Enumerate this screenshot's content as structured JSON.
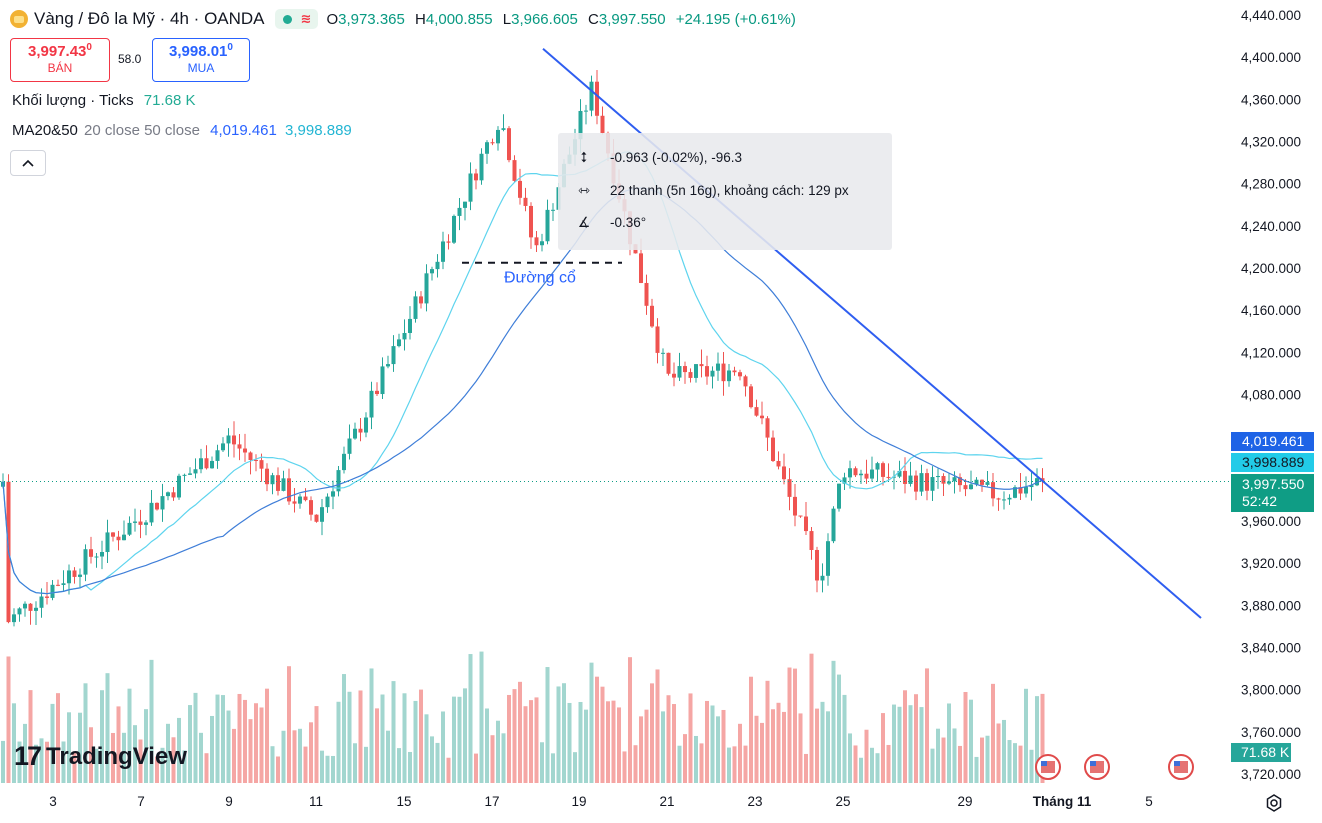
{
  "header": {
    "symbol_title": "Vàng / Đô la Mỹ · 4h · OANDA",
    "o_label": "O",
    "o_value": "3,973.365",
    "h_label": "H",
    "h_value": "4,000.855",
    "l_label": "L",
    "l_value": "3,966.605",
    "c_label": "C",
    "c_value": "3,997.550",
    "change": "+24.195 (+0.61%)"
  },
  "trade": {
    "sell_price": "3,997.43",
    "sell_sup": "0",
    "sell_label": "BÁN",
    "spread": "58.0",
    "buy_price": "3,998.01",
    "buy_sup": "0",
    "buy_label": "MUA"
  },
  "indicators": {
    "volume_label": "Khối lượng · Ticks",
    "volume_value": "71.68 K",
    "ma_label": "MA20&50",
    "ma_params": "20 close 50 close",
    "ma20_value": "4,019.461",
    "ma50_value": "3,998.889"
  },
  "measure": {
    "price_change": "-0.963 (-0.02%), -96.3",
    "bars": "22 thanh (5n 16g), khoảng cách: 129 px",
    "angle": "-0.36°"
  },
  "annotation": {
    "support_label": "Đường cổ"
  },
  "price_tags": {
    "ma20": "4,019.461",
    "ma50": "3,998.889",
    "last": "3,997.550",
    "countdown": "52:42",
    "volume": "71.68 K"
  },
  "brand": {
    "logo_text": "TradingView"
  },
  "colors": {
    "up": "#26a69a",
    "down": "#ef5350",
    "vol_up": "#a2d6cf",
    "vol_down": "#f5a6a4",
    "ma20": "#5ed4ee",
    "ma50": "#3f7ed8",
    "trendline": "#2f5ef0",
    "tag_ma20": "#1e63e6",
    "tag_ma50": "#22cbe8",
    "tag_last": "#0f9d85"
  },
  "chart_data": {
    "type": "candlestick",
    "title": "Vàng / Đô la Mỹ · 4h · OANDA",
    "y_ticks": [
      "4,440.000",
      "4,400.000",
      "4,360.000",
      "4,320.000",
      "4,280.000",
      "4,240.000",
      "4,200.000",
      "4,160.000",
      "4,120.000",
      "4,080.000",
      "4,040.000",
      "4,000.000",
      "3,960.000",
      "3,920.000",
      "3,880.000",
      "3,840.000",
      "3,800.000",
      "3,760.000",
      "3,720.000"
    ],
    "y_tick_values": [
      4440,
      4400,
      4360,
      4320,
      4280,
      4240,
      4200,
      4160,
      4120,
      4080,
      4040,
      4000,
      3960,
      3920,
      3880,
      3840,
      3800,
      3760,
      3720
    ],
    "ylim": [
      3712,
      4455
    ],
    "x_ticks": [
      "3",
      "7",
      "9",
      "11",
      "15",
      "17",
      "19",
      "21",
      "23",
      "25",
      "29",
      "Tháng 11",
      "5",
      "7"
    ],
    "key_closes": [
      {
        "date": "3",
        "close": 3865
      },
      {
        "date": "7",
        "close": 3965
      },
      {
        "date": "9",
        "close": 4038
      },
      {
        "date": "11",
        "close": 3962
      },
      {
        "date": "15",
        "close": 4140
      },
      {
        "date": "17",
        "close": 4345
      },
      {
        "date": "19",
        "close": 4215
      },
      {
        "date": "21",
        "close": 4370
      },
      {
        "date": "23",
        "close": 4095
      },
      {
        "date": "25",
        "close": 4105
      },
      {
        "date": "28",
        "close": 3905
      },
      {
        "date": "29",
        "close": 4010
      },
      {
        "date": "Tháng 11",
        "close": 3985
      },
      {
        "date": "4",
        "close": 3997.55
      }
    ],
    "overlays": {
      "ma20_last": 4019.461,
      "ma50_last": 3998.889,
      "support_level": 4205,
      "trendline_start_price": 4408,
      "trendline_end_price": 3868
    },
    "volume_last": "71.68 K",
    "grid": false,
    "legend": "top-left"
  }
}
